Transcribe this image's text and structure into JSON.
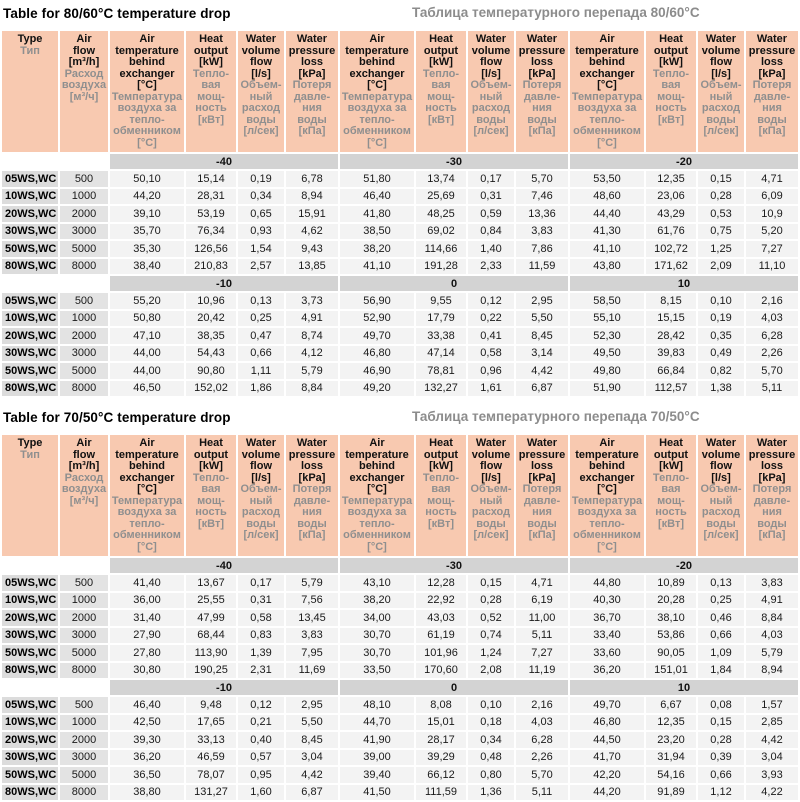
{
  "colors": {
    "header-bg": "#f8c9b0",
    "header-ru": "#8f8f8f",
    "band-bg": "#d3d3d3",
    "type-bg": "#dcdcdc",
    "flow-bg": "#e3e3e3",
    "cell-bg": "#f3f3f3",
    "title-ru": "#8c8c8c"
  },
  "header": {
    "type": {
      "en": "Type",
      "ru": "Тип"
    },
    "air_flow": {
      "en": "Air\nflow\n[m³/h]",
      "ru": "Расход\nвоздуха\n[м³/ч]"
    },
    "group_cols": [
      {
        "en": "Air\ntemperature\nbehind\nexchanger\n[°C]",
        "ru": "Температура\nвоздуха за\nтепло-\nобменником\n[°C]"
      },
      {
        "en": "Heat\noutput\n[kW]",
        "ru": "Тепло-\nвая\nмощ-\nность\n[кВт]"
      },
      {
        "en": "Water\nvolume\nflow\n[l/s]",
        "ru": "Объем-\nный\nрасход\nводы\n[л/сек]"
      },
      {
        "en": "Water\npressure\nloss\n[kPa]",
        "ru": "Потеря\nдавле-\nния\nводы\n[кПа]"
      }
    ]
  },
  "tables": [
    {
      "title_en": "Table for 80/60°C temperature drop",
      "title_ru": "Таблица температурного перепада 80/60°C",
      "sections": [
        {
          "temps": [
            "-40",
            "-30",
            "-20"
          ],
          "rows": [
            {
              "type": "05WS,WC",
              "flow": "500",
              "values": [
                "50,10",
                "15,14",
                "0,19",
                "6,78",
                "51,80",
                "13,74",
                "0,17",
                "5,70",
                "53,50",
                "12,35",
                "0,15",
                "4,71"
              ]
            },
            {
              "type": "10WS,WC",
              "flow": "1000",
              "values": [
                "44,20",
                "28,31",
                "0,34",
                "8,94",
                "46,40",
                "25,69",
                "0,31",
                "7,46",
                "48,60",
                "23,06",
                "0,28",
                "6,09"
              ]
            },
            {
              "type": "20WS,WC",
              "flow": "2000",
              "values": [
                "39,10",
                "53,19",
                "0,65",
                "15,91",
                "41,80",
                "48,25",
                "0,59",
                "13,36",
                "44,40",
                "43,29",
                "0,53",
                "10,9"
              ]
            },
            {
              "type": "30WS,WC",
              "flow": "3000",
              "values": [
                "35,70",
                "76,34",
                "0,93",
                "4,62",
                "38,50",
                "69,02",
                "0,84",
                "3,83",
                "41,30",
                "61,76",
                "0,75",
                "5,20"
              ]
            },
            {
              "type": "50WS,WC",
              "flow": "5000",
              "values": [
                "35,30",
                "126,56",
                "1,54",
                "9,43",
                "38,20",
                "114,66",
                "1,40",
                "7,86",
                "41,10",
                "102,72",
                "1,25",
                "7,27"
              ]
            },
            {
              "type": "80WS,WC",
              "flow": "8000",
              "values": [
                "38,40",
                "210,83",
                "2,57",
                "13,85",
                "41,10",
                "191,28",
                "2,33",
                "11,59",
                "43,80",
                "171,62",
                "2,09",
                "11,10"
              ]
            }
          ]
        },
        {
          "temps": [
            "-10",
            "0",
            "10"
          ],
          "rows": [
            {
              "type": "05WS,WC",
              "flow": "500",
              "values": [
                "55,20",
                "10,96",
                "0,13",
                "3,73",
                "56,90",
                "9,55",
                "0,12",
                "2,95",
                "58,50",
                "8,15",
                "0,10",
                "2,16"
              ]
            },
            {
              "type": "10WS,WC",
              "flow": "1000",
              "values": [
                "50,80",
                "20,42",
                "0,25",
                "4,91",
                "52,90",
                "17,79",
                "0,22",
                "5,50",
                "55,10",
                "15,15",
                "0,19",
                "4,03"
              ]
            },
            {
              "type": "20WS,WC",
              "flow": "2000",
              "values": [
                "47,10",
                "38,35",
                "0,47",
                "8,74",
                "49,70",
                "33,38",
                "0,41",
                "8,45",
                "52,30",
                "28,42",
                "0,35",
                "6,28"
              ]
            },
            {
              "type": "30WS,WC",
              "flow": "3000",
              "values": [
                "44,00",
                "54,43",
                "0,66",
                "4,12",
                "46,80",
                "47,14",
                "0,58",
                "3,14",
                "49,50",
                "39,83",
                "0,49",
                "2,26"
              ]
            },
            {
              "type": "50WS,WC",
              "flow": "5000",
              "values": [
                "44,00",
                "90,80",
                "1,11",
                "5,79",
                "46,90",
                "78,81",
                "0,96",
                "4,42",
                "49,80",
                "66,84",
                "0,82",
                "5,70"
              ]
            },
            {
              "type": "80WS,WC",
              "flow": "8000",
              "values": [
                "46,50",
                "152,02",
                "1,86",
                "8,84",
                "49,20",
                "132,27",
                "1,61",
                "6,87",
                "51,90",
                "112,57",
                "1,38",
                "5,11"
              ]
            }
          ]
        }
      ]
    },
    {
      "title_en": "Table for 70/50°C temperature drop",
      "title_ru": "Таблица температурного перепада 70/50°C",
      "sections": [
        {
          "temps": [
            "-40",
            "-30",
            "-20"
          ],
          "rows": [
            {
              "type": "05WS,WC",
              "flow": "500",
              "values": [
                "41,40",
                "13,67",
                "0,17",
                "5,79",
                "43,10",
                "12,28",
                "0,15",
                "4,71",
                "44,80",
                "10,89",
                "0,13",
                "3,83"
              ]
            },
            {
              "type": "10WS,WC",
              "flow": "1000",
              "values": [
                "36,00",
                "25,55",
                "0,31",
                "7,56",
                "38,20",
                "22,92",
                "0,28",
                "6,19",
                "40,30",
                "20,28",
                "0,25",
                "4,91"
              ]
            },
            {
              "type": "20WS,WC",
              "flow": "2000",
              "values": [
                "31,40",
                "47,99",
                "0,58",
                "13,45",
                "34,00",
                "43,03",
                "0,52",
                "11,00",
                "36,70",
                "38,10",
                "0,46",
                "8,84"
              ]
            },
            {
              "type": "30WS,WC",
              "flow": "3000",
              "values": [
                "27,90",
                "68,44",
                "0,83",
                "3,83",
                "30,70",
                "61,19",
                "0,74",
                "5,11",
                "33,40",
                "53,86",
                "0,66",
                "4,03"
              ]
            },
            {
              "type": "50WS,WC",
              "flow": "5000",
              "values": [
                "27,80",
                "113,90",
                "1,39",
                "7,95",
                "30,70",
                "101,96",
                "1,24",
                "7,27",
                "33,60",
                "90,05",
                "1,09",
                "5,79"
              ]
            },
            {
              "type": "80WS,WC",
              "flow": "8000",
              "values": [
                "30,80",
                "190,25",
                "2,31",
                "11,69",
                "33,50",
                "170,60",
                "2,08",
                "11,19",
                "36,20",
                "151,01",
                "1,84",
                "8,94"
              ]
            }
          ]
        },
        {
          "temps": [
            "-10",
            "0",
            "10"
          ],
          "rows": [
            {
              "type": "05WS,WC",
              "flow": "500",
              "values": [
                "46,40",
                "9,48",
                "0,12",
                "2,95",
                "48,10",
                "8,08",
                "0,10",
                "2,16",
                "49,70",
                "6,67",
                "0,08",
                "1,57"
              ]
            },
            {
              "type": "10WS,WC",
              "flow": "1000",
              "values": [
                "42,50",
                "17,65",
                "0,21",
                "5,50",
                "44,70",
                "15,01",
                "0,18",
                "4,03",
                "46,80",
                "12,35",
                "0,15",
                "2,85"
              ]
            },
            {
              "type": "20WS,WC",
              "flow": "2000",
              "values": [
                "39,30",
                "33,13",
                "0,40",
                "8,45",
                "41,90",
                "28,17",
                "0,34",
                "6,28",
                "44,50",
                "23,20",
                "0,28",
                "4,42"
              ]
            },
            {
              "type": "30WS,WC",
              "flow": "3000",
              "values": [
                "36,20",
                "46,59",
                "0,57",
                "3,04",
                "39,00",
                "39,29",
                "0,48",
                "2,26",
                "41,70",
                "31,94",
                "0,39",
                "3,04"
              ]
            },
            {
              "type": "50WS,WC",
              "flow": "5000",
              "values": [
                "36,50",
                "78,07",
                "0,95",
                "4,42",
                "39,40",
                "66,12",
                "0,80",
                "5,70",
                "42,20",
                "54,16",
                "0,66",
                "3,93"
              ]
            },
            {
              "type": "80WS,WC",
              "flow": "8000",
              "values": [
                "38,80",
                "131,27",
                "1,60",
                "6,87",
                "41,50",
                "111,59",
                "1,36",
                "5,11",
                "44,20",
                "91,89",
                "1,12",
                "4,22"
              ]
            }
          ]
        }
      ]
    }
  ]
}
